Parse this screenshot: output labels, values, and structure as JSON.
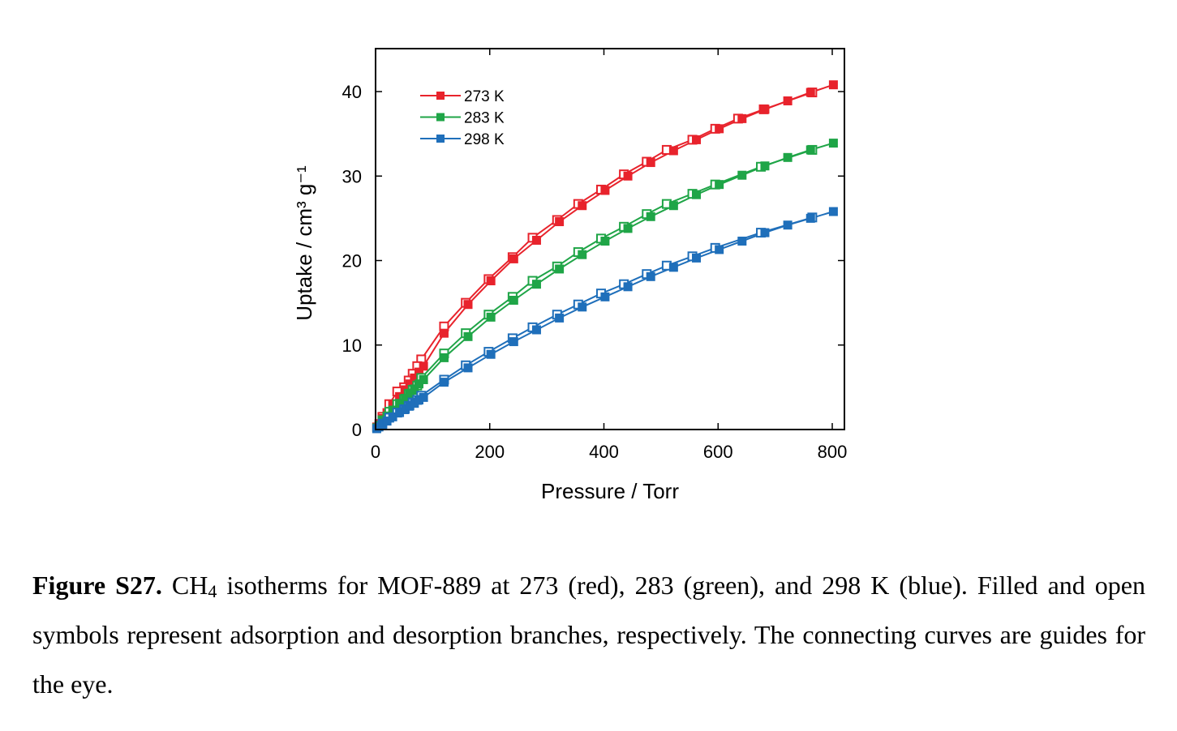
{
  "chart_data": {
    "type": "scatter",
    "title": "",
    "xlabel": "Pressure / Torr",
    "ylabel": "Uptake / cm³ g⁻¹",
    "xlim": [
      0,
      820
    ],
    "ylim": [
      0,
      45
    ],
    "xticks": [
      0,
      200,
      400,
      600,
      800
    ],
    "yticks": [
      0,
      10,
      20,
      30,
      40
    ],
    "grid": false,
    "legend_position": "top-left",
    "series": [
      {
        "name": "273 K",
        "color": "#e8232c",
        "adsorption": {
          "x": [
            2,
            6,
            12,
            20,
            30,
            42,
            52,
            60,
            68,
            76,
            84,
            120,
            162,
            202,
            242,
            282,
            322,
            362,
            402,
            442,
            482,
            522,
            562,
            602,
            642,
            682,
            722,
            762,
            802
          ],
          "y": [
            0.3,
            0.7,
            1.3,
            2.0,
            2.9,
            3.9,
            4.7,
            5.4,
            6.1,
            6.8,
            7.5,
            11.4,
            14.8,
            17.6,
            20.2,
            22.4,
            24.6,
            26.5,
            28.3,
            30.0,
            31.6,
            33.0,
            34.3,
            35.6,
            36.8,
            37.9,
            38.9,
            39.9,
            40.8
          ]
        },
        "desorption": {
          "x": [
            765,
            680,
            635,
            595,
            555,
            510,
            475,
            435,
            395,
            355,
            318,
            275,
            240,
            198,
            158,
            120,
            80,
            73,
            65,
            58,
            50,
            38,
            24,
            12
          ],
          "y": [
            39.9,
            37.9,
            36.8,
            35.6,
            34.3,
            33.1,
            31.7,
            30.2,
            28.4,
            26.7,
            24.8,
            22.7,
            20.4,
            17.8,
            15.0,
            12.2,
            8.3,
            7.5,
            6.6,
            5.8,
            5.0,
            4.5,
            3.0,
            1.5
          ]
        }
      },
      {
        "name": "283 K",
        "color": "#1fa547",
        "adsorption": {
          "x": [
            2,
            6,
            12,
            20,
            30,
            42,
            52,
            60,
            68,
            76,
            84,
            120,
            162,
            202,
            242,
            282,
            322,
            362,
            402,
            442,
            482,
            522,
            562,
            602,
            642,
            682,
            722,
            762,
            802
          ],
          "y": [
            0.2,
            0.5,
            1.0,
            1.6,
            2.3,
            3.1,
            3.7,
            4.3,
            4.8,
            5.4,
            5.9,
            8.5,
            11.0,
            13.3,
            15.3,
            17.2,
            19.0,
            20.7,
            22.3,
            23.8,
            25.2,
            26.5,
            27.8,
            29.0,
            30.1,
            31.2,
            32.2,
            33.1,
            33.9
          ]
        },
        "desorption": {
          "x": [
            765,
            675,
            595,
            555,
            510,
            475,
            435,
            395,
            355,
            318,
            275,
            240,
            198,
            158,
            120,
            80,
            73,
            65,
            58,
            50,
            38,
            24,
            12
          ],
          "y": [
            33.1,
            31.1,
            29.0,
            27.9,
            26.7,
            25.5,
            24.0,
            22.6,
            21.0,
            19.3,
            17.6,
            15.7,
            13.6,
            11.4,
            9.0,
            6.1,
            5.2,
            4.7,
            4.2,
            3.6,
            3.0,
            2.1,
            1.1
          ]
        }
      },
      {
        "name": "298 K",
        "color": "#1f6fba",
        "adsorption": {
          "x": [
            2,
            6,
            12,
            20,
            30,
            42,
            52,
            60,
            68,
            76,
            84,
            120,
            162,
            202,
            242,
            282,
            322,
            362,
            402,
            442,
            482,
            522,
            562,
            602,
            642,
            682,
            722,
            762,
            802
          ],
          "y": [
            0.1,
            0.3,
            0.6,
            1.0,
            1.5,
            2.0,
            2.4,
            2.8,
            3.1,
            3.5,
            3.8,
            5.6,
            7.3,
            8.9,
            10.4,
            11.8,
            13.2,
            14.5,
            15.7,
            16.9,
            18.1,
            19.2,
            20.3,
            21.3,
            22.3,
            23.3,
            24.2,
            25.0,
            25.8
          ]
        },
        "desorption": {
          "x": [
            765,
            675,
            595,
            555,
            510,
            475,
            435,
            395,
            355,
            318,
            275,
            240,
            198,
            158,
            120,
            80,
            73,
            65,
            58,
            50,
            38,
            24,
            12
          ],
          "y": [
            25.1,
            23.3,
            21.5,
            20.5,
            19.4,
            18.4,
            17.2,
            16.1,
            14.8,
            13.6,
            12.1,
            10.8,
            9.2,
            7.6,
            5.9,
            4.0,
            3.5,
            3.2,
            2.8,
            2.4,
            2.0,
            1.4,
            0.7
          ]
        }
      }
    ]
  },
  "caption": {
    "label": "Figure S27.",
    "text_before_sub": " CH",
    "sub": "4",
    "text_after_sub": " isotherms for MOF-889 at 273 (red), 283 (green), and 298 K (blue). Filled and open symbols represent adsorption and desorption branches, respectively. The connecting curves are guides for the eye."
  }
}
